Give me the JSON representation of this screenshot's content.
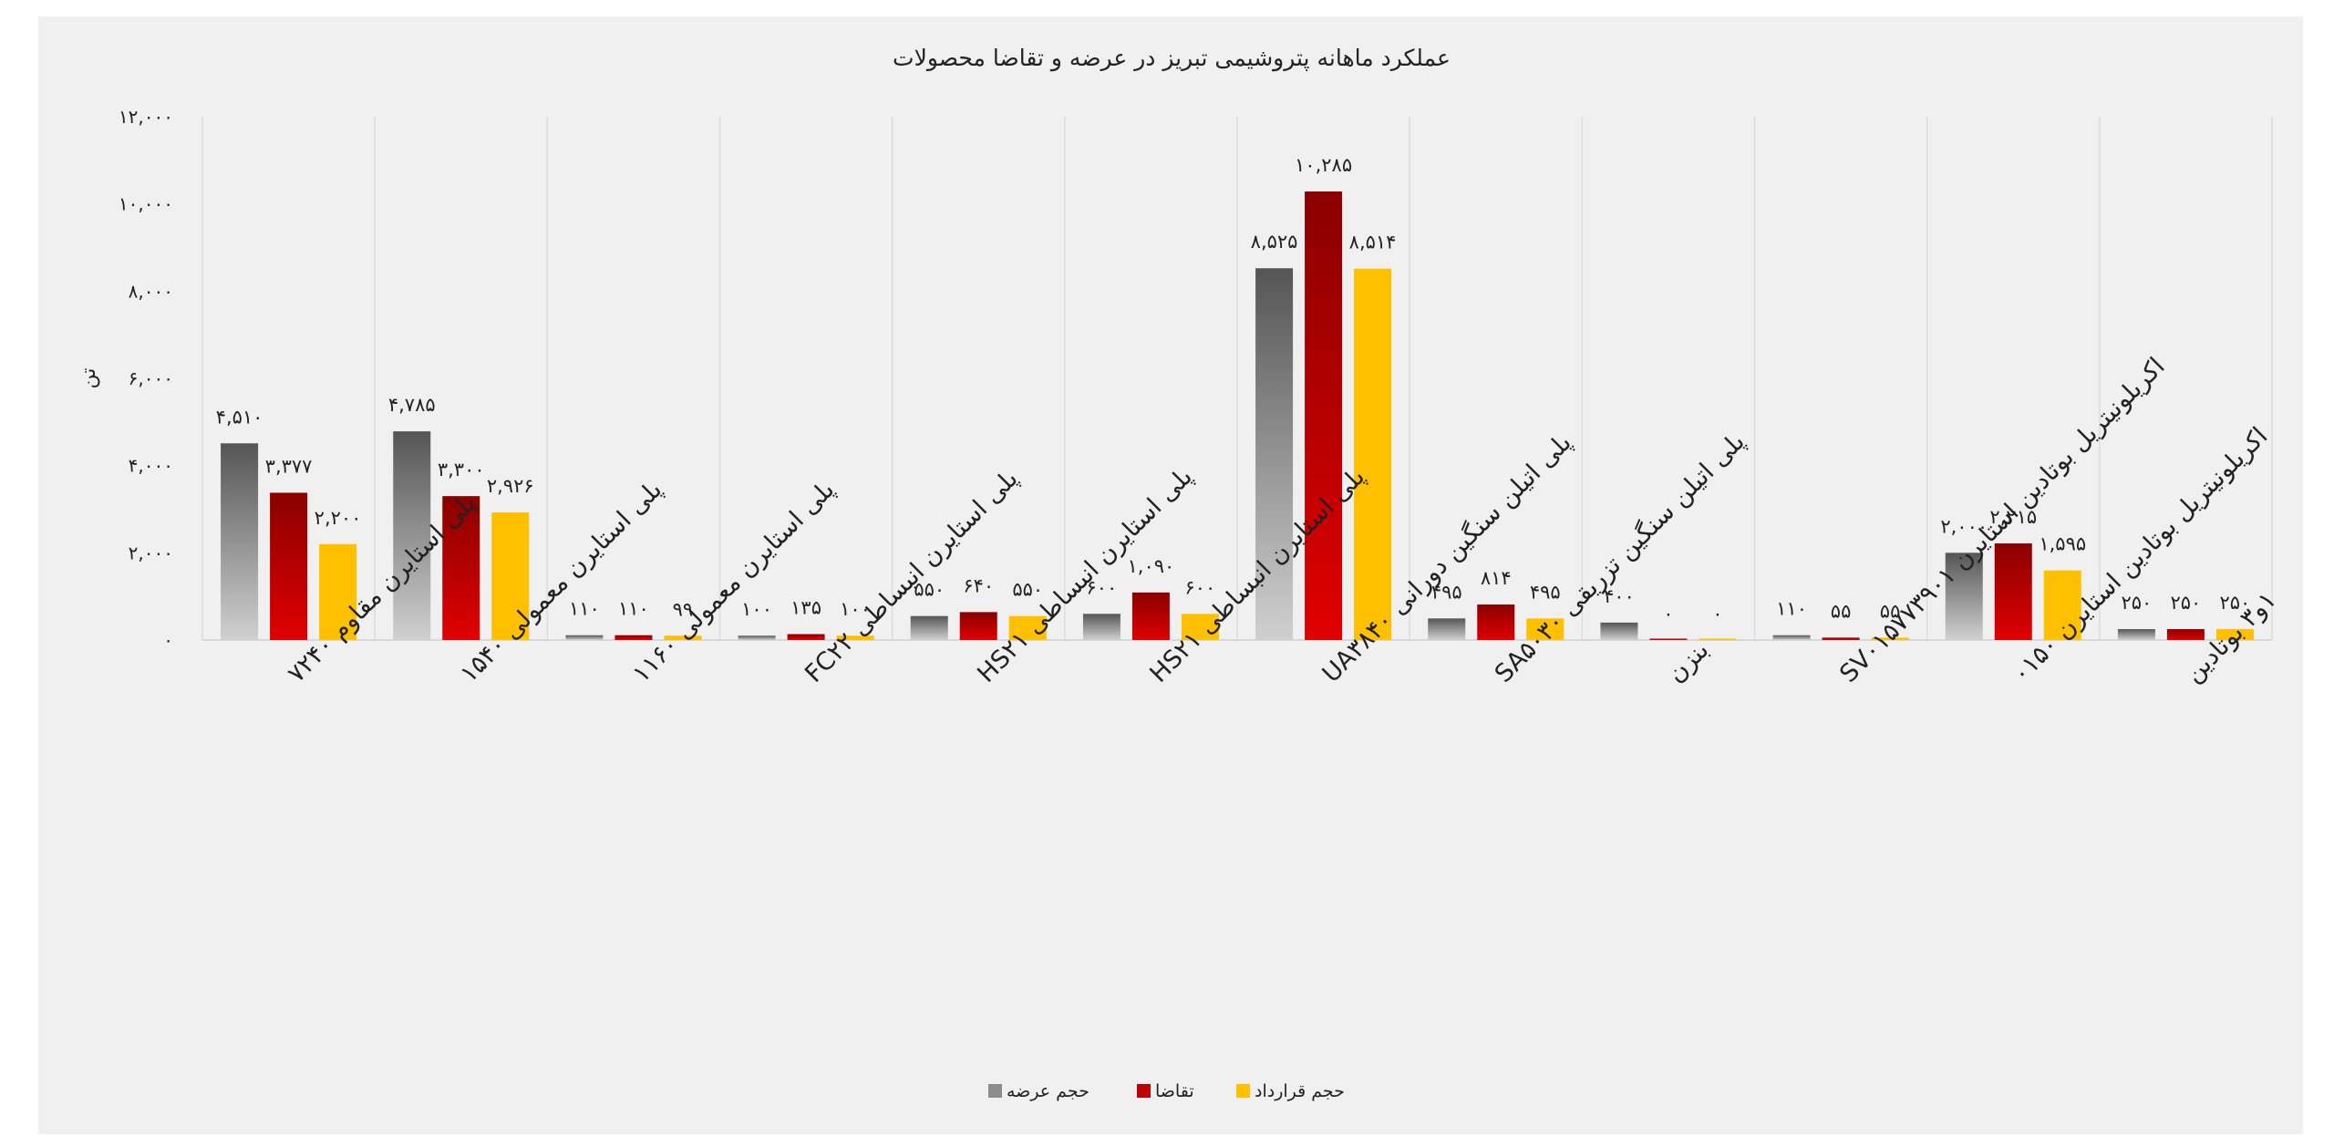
{
  "chart_data": {
    "type": "bar",
    "title": "عملکرد ماهانه پتروشیمی تبریز در عرضه و تقاضا محصولات",
    "ylabel": "تن",
    "ylim": [
      0,
      12000
    ],
    "yticks": [
      "۰",
      "۲,۰۰۰",
      "۴,۰۰۰",
      "۶,۰۰۰",
      "۸,۰۰۰",
      "۱۰,۰۰۰",
      "۱۲,۰۰۰"
    ],
    "ytick_values": [
      0,
      2000,
      4000,
      6000,
      8000,
      10000,
      12000
    ],
    "categories": [
      "پلی استایرن مقاوم ۷۲۴۰",
      "پلی استایرن معمولی ۱۵۴۰",
      "پلی استایرن معمولی ۱۱۶۰",
      "پلی استایرن انبساطی FC۲۲",
      "پلی استایرن انبساطی HS۲۱",
      "پلی استایرن انبساطی HS۲۱",
      "پلی اتیلن سنگین دورانی UA۳۸۴۰",
      "پلی اتیلن سنگین تزریقی SA۵۰۳۰",
      "بنزن",
      "اکریلونیتریل بوتادین استایرن SV۰۱۵۷۷۳۹۰۱",
      "اکریلونیتریل بوتادین استایرن ۰۱۵۰",
      "۱و۳ بوتادین"
    ],
    "series": [
      {
        "name": "حجم عرضه",
        "color": "#8c8c8c",
        "values": [
          4510,
          4785,
          110,
          100,
          550,
          600,
          8525,
          495,
          400,
          110,
          2000,
          250
        ],
        "labels": [
          "۴,۵۱۰",
          "۴,۷۸۵",
          "۱۱۰",
          "۱۰۰",
          "۵۵۰",
          "۶۰۰",
          "۸,۵۲۵",
          "۴۹۵",
          "۴۰۰",
          "۱۱۰",
          "۲,۰۰۰",
          "۲۵۰"
        ]
      },
      {
        "name": "تقاضا",
        "color": "#c00000",
        "values": [
          3377,
          3300,
          110,
          135,
          640,
          1090,
          10285,
          814,
          0,
          55,
          2215,
          250
        ],
        "labels": [
          "۳,۳۷۷",
          "۳,۳۰۰",
          "۱۱۰",
          "۱۳۵",
          "۶۴۰",
          "۱,۰۹۰",
          "۱۰,۲۸۵",
          "۸۱۴",
          "۰",
          "۵۵",
          "۲,۲۱۵",
          "۲۵۰"
        ]
      },
      {
        "name": "حجم قرارداد",
        "color": "#ffc000",
        "values": [
          2200,
          2926,
          99,
          100,
          550,
          600,
          8514,
          495,
          0,
          55,
          1595,
          250
        ],
        "labels": [
          "۲,۲۰۰",
          "۲,۹۲۶",
          "۹۹",
          "۱۰۰",
          "۵۵۰",
          "۶۰۰",
          "۸,۵۱۴",
          "۴۹۵",
          "۰",
          "۵۵",
          "۱,۵۹۵",
          "۲۵۰"
        ]
      }
    ],
    "legend_position": "bottom",
    "grid": "vertical category separators"
  }
}
